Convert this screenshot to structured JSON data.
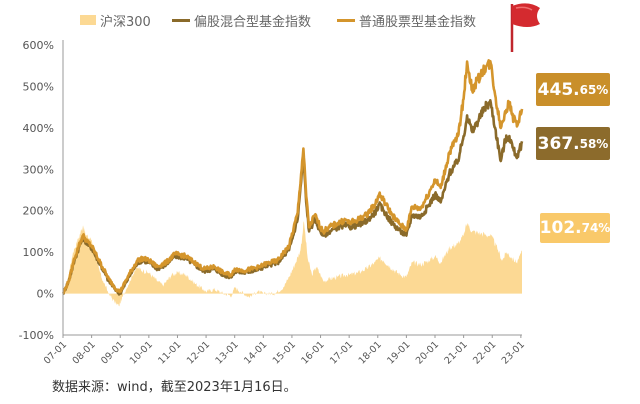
{
  "chart_data": {
    "type": "line",
    "title": "",
    "xlabel": "",
    "ylabel": "",
    "ylim": [
      -100,
      600
    ],
    "y_ticks": [
      "-100%",
      "0%",
      "100%",
      "200%",
      "300%",
      "400%",
      "500%",
      "600%"
    ],
    "y_tick_values": [
      -100,
      0,
      100,
      200,
      300,
      400,
      500,
      600
    ],
    "x_ticks": [
      "07-01",
      "08-01",
      "09-01",
      "10-01",
      "11-01",
      "12-01",
      "13-01",
      "14-01",
      "15-01",
      "16-01",
      "17-01",
      "18-01",
      "19-01",
      "20-01",
      "21-01",
      "22-01",
      "23-01"
    ],
    "grid": false,
    "legend_position": "top",
    "series": [
      {
        "name": "沪深300",
        "kind": "area",
        "color": "#fcd994",
        "final_label_big": "102.",
        "final_label_small": "74%",
        "badge_color": "#f9c96a",
        "points": [
          [
            2007.0,
            0
          ],
          [
            2007.15,
            30
          ],
          [
            2007.35,
            100
          ],
          [
            2007.55,
            135
          ],
          [
            2007.7,
            165
          ],
          [
            2007.8,
            140
          ],
          [
            2008.0,
            130
          ],
          [
            2008.2,
            70
          ],
          [
            2008.4,
            30
          ],
          [
            2008.6,
            0
          ],
          [
            2008.8,
            -20
          ],
          [
            2008.95,
            -30
          ],
          [
            2009.2,
            10
          ],
          [
            2009.5,
            55
          ],
          [
            2009.6,
            62
          ],
          [
            2009.8,
            55
          ],
          [
            2010.0,
            50
          ],
          [
            2010.3,
            30
          ],
          [
            2010.5,
            20
          ],
          [
            2010.8,
            45
          ],
          [
            2011.0,
            50
          ],
          [
            2011.3,
            45
          ],
          [
            2011.6,
            25
          ],
          [
            2011.9,
            10
          ],
          [
            2012.0,
            5
          ],
          [
            2012.3,
            10
          ],
          [
            2012.6,
            0
          ],
          [
            2012.9,
            -5
          ],
          [
            2013.0,
            15
          ],
          [
            2013.2,
            5
          ],
          [
            2013.5,
            -8
          ],
          [
            2013.8,
            5
          ],
          [
            2014.0,
            0
          ],
          [
            2014.4,
            0
          ],
          [
            2014.7,
            15
          ],
          [
            2014.9,
            40
          ],
          [
            2015.1,
            70
          ],
          [
            2015.3,
            105
          ],
          [
            2015.42,
            175
          ],
          [
            2015.55,
            85
          ],
          [
            2015.7,
            45
          ],
          [
            2015.85,
            65
          ],
          [
            2016.0,
            45
          ],
          [
            2016.1,
            30
          ],
          [
            2016.3,
            35
          ],
          [
            2016.6,
            40
          ],
          [
            2016.9,
            45
          ],
          [
            2017.0,
            45
          ],
          [
            2017.3,
            50
          ],
          [
            2017.6,
            60
          ],
          [
            2017.9,
            75
          ],
          [
            2018.05,
            85
          ],
          [
            2018.2,
            80
          ],
          [
            2018.5,
            60
          ],
          [
            2018.8,
            45
          ],
          [
            2019.0,
            40
          ],
          [
            2019.2,
            75
          ],
          [
            2019.5,
            70
          ],
          [
            2019.8,
            80
          ],
          [
            2020.0,
            90
          ],
          [
            2020.2,
            75
          ],
          [
            2020.5,
            110
          ],
          [
            2020.8,
            120
          ],
          [
            2021.0,
            140
          ],
          [
            2021.12,
            170
          ],
          [
            2021.3,
            150
          ],
          [
            2021.6,
            145
          ],
          [
            2021.9,
            140
          ],
          [
            2022.0,
            135
          ],
          [
            2022.2,
            105
          ],
          [
            2022.35,
            80
          ],
          [
            2022.5,
            100
          ],
          [
            2022.7,
            85
          ],
          [
            2022.85,
            75
          ],
          [
            2023.0,
            95
          ],
          [
            2023.04,
            102.74
          ]
        ]
      },
      {
        "name": "偏股混合型基金指数",
        "kind": "line",
        "color": "#8a6a2a",
        "final_label_big": "367.",
        "final_label_small": "58%",
        "badge_color": "#8c6b2c",
        "points": [
          [
            2007.0,
            0
          ],
          [
            2007.2,
            30
          ],
          [
            2007.4,
            80
          ],
          [
            2007.55,
            110
          ],
          [
            2007.7,
            135
          ],
          [
            2007.85,
            120
          ],
          [
            2008.0,
            110
          ],
          [
            2008.3,
            70
          ],
          [
            2008.6,
            30
          ],
          [
            2008.9,
            5
          ],
          [
            2009.0,
            0
          ],
          [
            2009.3,
            40
          ],
          [
            2009.6,
            75
          ],
          [
            2009.8,
            80
          ],
          [
            2010.0,
            75
          ],
          [
            2010.3,
            60
          ],
          [
            2010.6,
            70
          ],
          [
            2010.9,
            90
          ],
          [
            2011.0,
            90
          ],
          [
            2011.3,
            85
          ],
          [
            2011.6,
            70
          ],
          [
            2011.9,
            55
          ],
          [
            2012.0,
            55
          ],
          [
            2012.3,
            60
          ],
          [
            2012.6,
            45
          ],
          [
            2012.9,
            40
          ],
          [
            2013.0,
            55
          ],
          [
            2013.3,
            50
          ],
          [
            2013.6,
            55
          ],
          [
            2013.9,
            60
          ],
          [
            2014.0,
            65
          ],
          [
            2014.5,
            75
          ],
          [
            2014.9,
            105
          ],
          [
            2015.2,
            180
          ],
          [
            2015.4,
            330
          ],
          [
            2015.5,
            220
          ],
          [
            2015.6,
            150
          ],
          [
            2015.8,
            180
          ],
          [
            2016.0,
            150
          ],
          [
            2016.1,
            140
          ],
          [
            2016.3,
            150
          ],
          [
            2016.6,
            160
          ],
          [
            2016.9,
            165
          ],
          [
            2017.0,
            160
          ],
          [
            2017.3,
            165
          ],
          [
            2017.6,
            175
          ],
          [
            2017.9,
            195
          ],
          [
            2018.05,
            215
          ],
          [
            2018.2,
            200
          ],
          [
            2018.5,
            170
          ],
          [
            2018.8,
            150
          ],
          [
            2019.0,
            140
          ],
          [
            2019.2,
            190
          ],
          [
            2019.5,
            185
          ],
          [
            2019.8,
            215
          ],
          [
            2020.0,
            240
          ],
          [
            2020.2,
            220
          ],
          [
            2020.5,
            290
          ],
          [
            2020.8,
            320
          ],
          [
            2021.0,
            380
          ],
          [
            2021.12,
            430
          ],
          [
            2021.3,
            390
          ],
          [
            2021.6,
            430
          ],
          [
            2021.8,
            455
          ],
          [
            2021.95,
            460
          ],
          [
            2022.1,
            400
          ],
          [
            2022.3,
            320
          ],
          [
            2022.45,
            370
          ],
          [
            2022.6,
            380
          ],
          [
            2022.75,
            345
          ],
          [
            2022.9,
            330
          ],
          [
            2023.04,
            367.58
          ]
        ]
      },
      {
        "name": "普通股票型基金指数",
        "kind": "line",
        "color": "#d4952c",
        "final_label_big": "445.",
        "final_label_small": "65%",
        "badge_color": "#c98f2a",
        "points": [
          [
            2007.0,
            0
          ],
          [
            2007.2,
            30
          ],
          [
            2007.4,
            85
          ],
          [
            2007.55,
            115
          ],
          [
            2007.7,
            140
          ],
          [
            2007.85,
            125
          ],
          [
            2008.0,
            115
          ],
          [
            2008.3,
            75
          ],
          [
            2008.6,
            35
          ],
          [
            2008.9,
            8
          ],
          [
            2009.0,
            5
          ],
          [
            2009.3,
            45
          ],
          [
            2009.6,
            80
          ],
          [
            2009.8,
            85
          ],
          [
            2010.0,
            80
          ],
          [
            2010.3,
            65
          ],
          [
            2010.6,
            75
          ],
          [
            2010.9,
            95
          ],
          [
            2011.0,
            95
          ],
          [
            2011.3,
            90
          ],
          [
            2011.6,
            75
          ],
          [
            2011.9,
            60
          ],
          [
            2012.0,
            60
          ],
          [
            2012.3,
            65
          ],
          [
            2012.6,
            50
          ],
          [
            2012.9,
            45
          ],
          [
            2013.0,
            60
          ],
          [
            2013.3,
            55
          ],
          [
            2013.6,
            60
          ],
          [
            2013.9,
            65
          ],
          [
            2014.0,
            70
          ],
          [
            2014.5,
            80
          ],
          [
            2014.9,
            115
          ],
          [
            2015.2,
            195
          ],
          [
            2015.4,
            350
          ],
          [
            2015.5,
            235
          ],
          [
            2015.6,
            160
          ],
          [
            2015.8,
            190
          ],
          [
            2016.0,
            160
          ],
          [
            2016.1,
            150
          ],
          [
            2016.3,
            160
          ],
          [
            2016.6,
            170
          ],
          [
            2016.9,
            178
          ],
          [
            2017.0,
            170
          ],
          [
            2017.3,
            178
          ],
          [
            2017.6,
            190
          ],
          [
            2017.9,
            215
          ],
          [
            2018.05,
            240
          ],
          [
            2018.2,
            225
          ],
          [
            2018.5,
            190
          ],
          [
            2018.8,
            165
          ],
          [
            2019.0,
            155
          ],
          [
            2019.2,
            210
          ],
          [
            2019.5,
            205
          ],
          [
            2019.8,
            245
          ],
          [
            2020.0,
            275
          ],
          [
            2020.2,
            255
          ],
          [
            2020.5,
            340
          ],
          [
            2020.8,
            380
          ],
          [
            2021.0,
            470
          ],
          [
            2021.12,
            560
          ],
          [
            2021.3,
            490
          ],
          [
            2021.6,
            530
          ],
          [
            2021.8,
            550
          ],
          [
            2021.95,
            555
          ],
          [
            2022.1,
            480
          ],
          [
            2022.3,
            400
          ],
          [
            2022.45,
            440
          ],
          [
            2022.6,
            460
          ],
          [
            2022.75,
            420
          ],
          [
            2022.9,
            410
          ],
          [
            2023.04,
            445.65
          ]
        ]
      }
    ]
  },
  "footnote": "数据来源：wind，截至2023年1月16日。",
  "flag_icon": "red-flag-icon"
}
